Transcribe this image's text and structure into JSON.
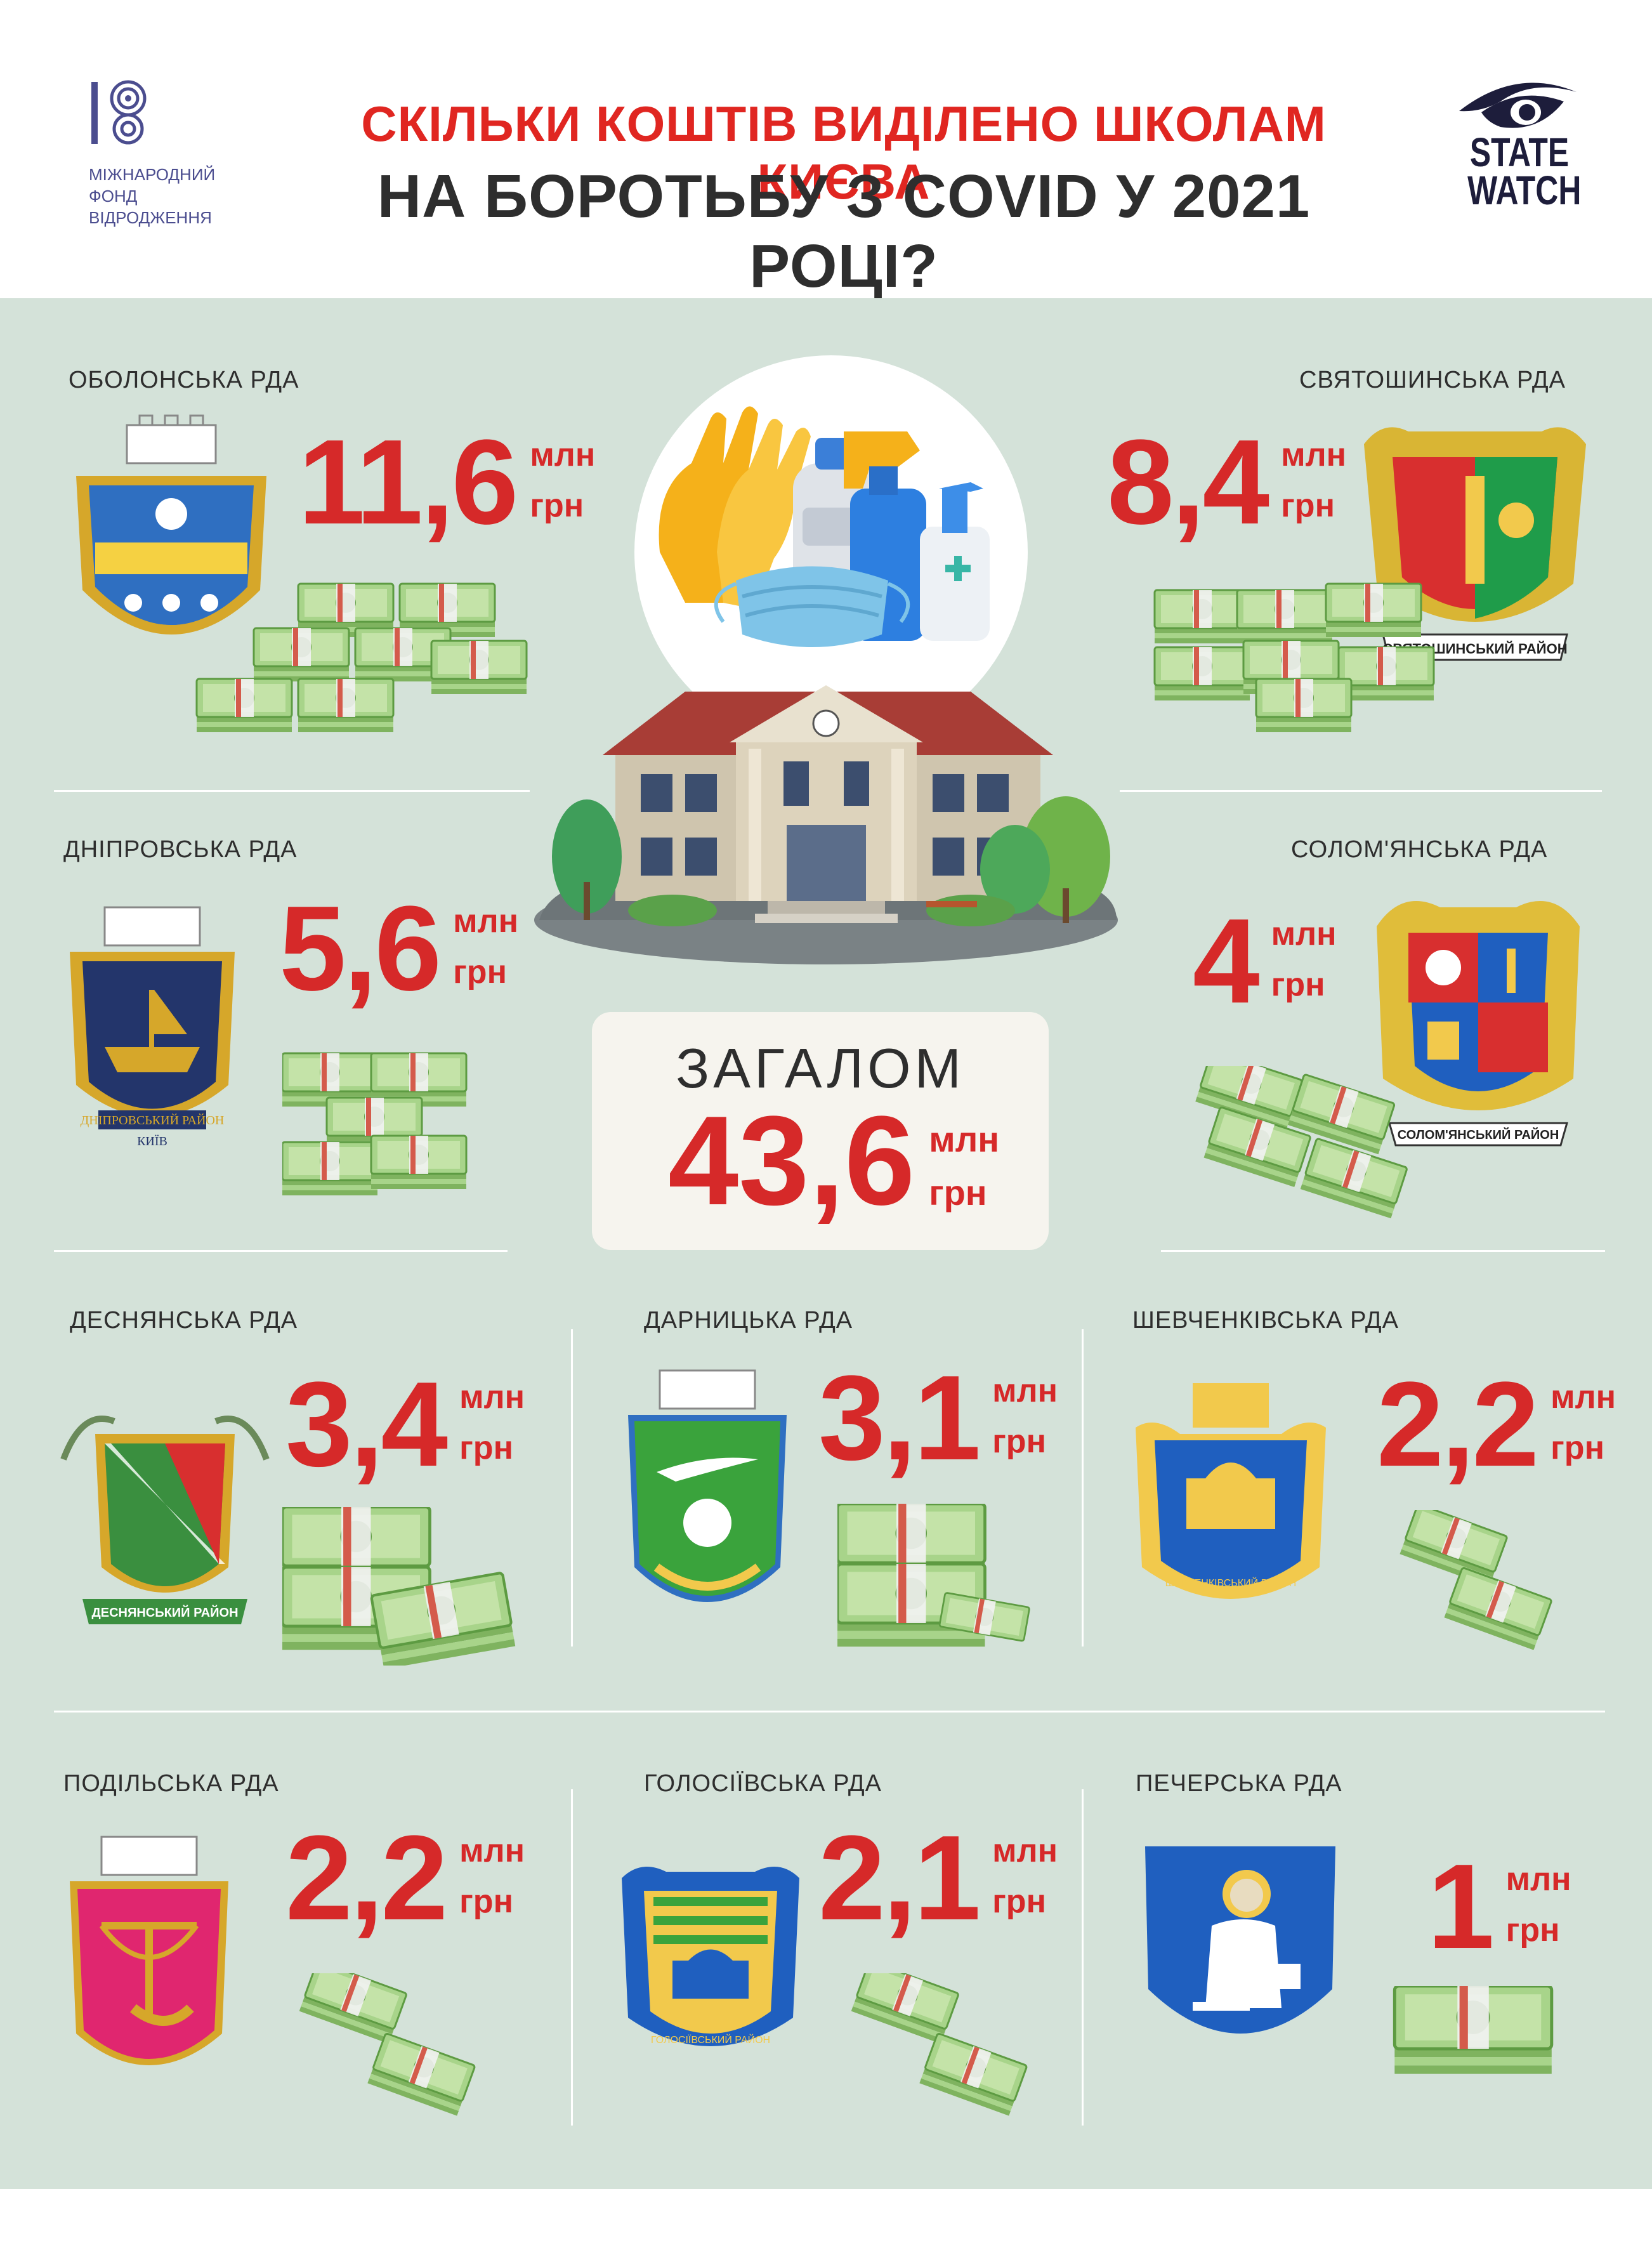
{
  "header": {
    "irf_text": [
      "МІЖНАРОДНИЙ",
      "ФОНД",
      "ВІДРОДЖЕННЯ"
    ],
    "title_line1": "СКІЛЬКИ КОШТІВ ВИДІЛЕНО ШКОЛАМ КИЄВА",
    "title_line2": "НА БОРОТЬБУ З COVID У 2021 РОЦІ?",
    "statewatch_line1": "STATE",
    "statewatch_line2": "WATCH"
  },
  "unit": {
    "line1": "млн",
    "line2": "грн"
  },
  "total": {
    "label": "ЗАГАЛОМ",
    "value": "43,6"
  },
  "districts": [
    {
      "name": "ОБОЛОНСЬКА РДА",
      "value": "11,6",
      "amount": 11.6
    },
    {
      "name": "СВЯТОШИНСЬКА РДА",
      "value": "8,4",
      "amount": 8.4
    },
    {
      "name": "ДНІПРОВСЬКА РДА",
      "value": "5,6",
      "amount": 5.6
    },
    {
      "name": "СОЛОМ'ЯНСЬКА РДА",
      "value": "4",
      "amount": 4
    },
    {
      "name": "ДЕСНЯНСЬКА РДА",
      "value": "3,4",
      "amount": 3.4
    },
    {
      "name": "ДАРНИЦЬКА РДА",
      "value": "3,1",
      "amount": 3.1
    },
    {
      "name": "ШЕВЧЕНКІВСЬКА РДА",
      "value": "2,2",
      "amount": 2.2
    },
    {
      "name": "ПОДІЛЬСЬКА РДА",
      "value": "2,2",
      "amount": 2.2
    },
    {
      "name": "ГОЛОСІЇВСЬКА РДА",
      "value": "2,1",
      "amount": 2.1
    },
    {
      "name": "ПЕЧЕРСЬКА РДА",
      "value": "1",
      "amount": 1
    }
  ],
  "crest_texts": {
    "sviatoshynskyi": "СВЯТОШИНСЬКИЙ РАЙОН",
    "dniprovskyi": "ДНІПРОВСЬКИЙ РАЙОН",
    "dniprovskyi_city": "КИЇВ",
    "solomianskyi": "СОЛОМ'ЯНСЬКИЙ РАЙОН",
    "desnianskyi": "ДЕСНЯНСЬКИЙ РАЙОН",
    "shevchenkivskyi": "ШЕВЧЕНКІВСЬКИЙ РАЙОН",
    "holosiivskyi": "ГОЛОСІЇВСЬКИЙ РАЙОН"
  },
  "colors": {
    "accent_red": "#d62929",
    "panel_bg": "#d4e2d9",
    "title_dark": "#2e2e2e",
    "money_green": "#8dc26a"
  },
  "icons": [
    "irf-logo-icon",
    "statewatch-eye-icon",
    "school-building-icon",
    "ppe-supplies-icon",
    "money-stack-icon",
    "coat-of-arms-icon"
  ]
}
